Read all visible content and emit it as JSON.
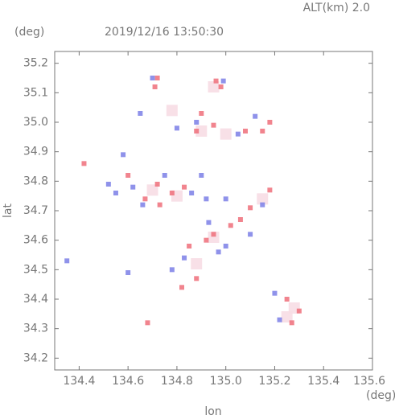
{
  "chart_data": {
    "type": "scatter",
    "title": "2019/12/16 13:50:30",
    "altitude_label": "ALT(km) 2.0",
    "y_unit": "(deg)",
    "x_unit": "(deg)",
    "x_label": "lon",
    "y_label": "lat",
    "xlim": [
      134.3,
      135.6
    ],
    "ylim": [
      34.16,
      35.24
    ],
    "xticks": [
      134.4,
      134.6,
      134.8,
      {
        "value": 135,
        "label": "135.0"
      },
      135.2,
      135.4,
      135.6
    ],
    "yticks": [
      34.2,
      34.3,
      34.4,
      34.5,
      34.6,
      34.7,
      34.8,
      34.9,
      {
        "value": 35,
        "label": "35.0"
      },
      35.1,
      35.2
    ],
    "series": [
      {
        "color": "#f7dde4",
        "x": [
          134.9,
          135.0,
          134.7,
          134.8,
          135.15,
          134.95,
          134.88,
          135.25,
          135.28,
          134.78,
          134.95
        ],
        "y": [
          34.97,
          34.96,
          34.77,
          34.75,
          34.74,
          34.61,
          34.52,
          34.34,
          34.37,
          35.04,
          35.12
        ]
      },
      {
        "color": "#ee6f7a",
        "x": [
          134.42,
          134.68,
          134.71,
          134.72,
          134.96,
          134.98,
          135.08,
          135.15,
          135.18,
          134.88,
          134.95,
          134.6,
          134.72,
          134.78,
          134.83,
          134.67,
          135.18,
          135.1,
          134.95,
          134.92,
          135.02,
          134.85,
          135.25,
          135.3,
          135.27,
          134.88,
          134.82,
          135.06,
          134.9,
          134.73
        ],
        "y": [
          34.86,
          34.32,
          35.12,
          35.15,
          35.14,
          35.12,
          34.97,
          34.97,
          35.0,
          34.97,
          34.99,
          34.82,
          34.79,
          34.76,
          34.78,
          34.74,
          34.77,
          34.71,
          34.62,
          34.6,
          34.65,
          34.58,
          34.4,
          34.36,
          34.32,
          34.47,
          34.44,
          34.67,
          35.03,
          34.72
        ]
      },
      {
        "color": "#7b7fe6",
        "x": [
          134.7,
          134.65,
          134.99,
          135.12,
          135.05,
          134.8,
          134.88,
          134.52,
          134.55,
          134.62,
          134.75,
          134.86,
          134.9,
          135.0,
          135.15,
          134.58,
          134.35,
          134.6,
          134.97,
          135.0,
          134.93,
          134.78,
          134.83,
          135.22,
          135.2,
          134.92,
          135.1,
          134.66
        ],
        "y": [
          35.15,
          35.03,
          35.14,
          35.02,
          34.96,
          34.98,
          35.0,
          34.79,
          34.76,
          34.78,
          34.82,
          34.76,
          34.82,
          34.74,
          34.72,
          34.89,
          34.53,
          34.49,
          34.56,
          34.58,
          34.66,
          34.5,
          34.54,
          34.33,
          34.42,
          34.74,
          34.62,
          34.72
        ]
      }
    ]
  }
}
